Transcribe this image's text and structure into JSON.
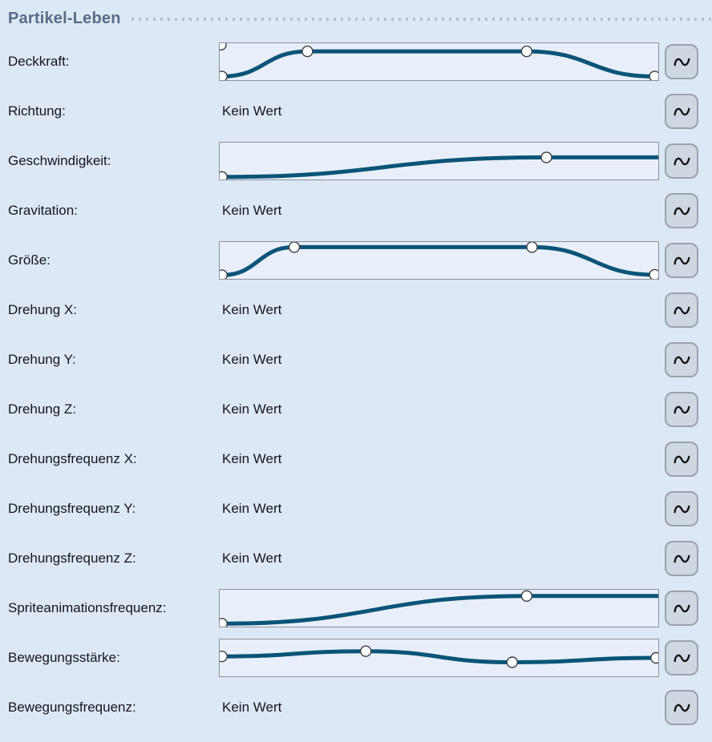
{
  "header": {
    "title": "Partikel-Leben"
  },
  "colors": {
    "background": "#dce8f5",
    "curve": "#0a5478",
    "accent_header": "#5a6b88",
    "widget_background": "#e8effa",
    "widget_border": "#8a929b",
    "button_background": "#cfd8e2",
    "marker_fill": "#ffffff"
  },
  "no_value_text": "Kein Wert",
  "button": {
    "icon": "sine-wave-icon"
  },
  "rows": [
    {
      "label": "Deckkraft:",
      "curve": {
        "points": [
          {
            "x": 0.005,
            "y": 0.9,
            "m": 1
          },
          {
            "x": 0.2,
            "y": 0.22,
            "m": 1
          },
          {
            "x": 0.7,
            "y": 0.22,
            "m": 1
          },
          {
            "x": 0.992,
            "y": 0.9,
            "m": 1
          }
        ],
        "extra_markers": [
          {
            "x": 0.003,
            "y": 0.04
          }
        ]
      }
    },
    {
      "label": "Richtung:",
      "value": "Kein Wert"
    },
    {
      "label": "Geschwindigkeit:",
      "curve": {
        "points": [
          {
            "x": 0.005,
            "y": 0.93,
            "m": 1
          },
          {
            "x": 0.745,
            "y": 0.4,
            "m": 1
          },
          {
            "x": 1.0,
            "y": 0.4,
            "m": 0
          }
        ]
      }
    },
    {
      "label": "Gravitation:",
      "value": "Kein Wert"
    },
    {
      "label": "Größe:",
      "curve": {
        "points": [
          {
            "x": 0.005,
            "y": 0.9,
            "m": 1
          },
          {
            "x": 0.17,
            "y": 0.14,
            "m": 1
          },
          {
            "x": 0.712,
            "y": 0.14,
            "m": 1
          },
          {
            "x": 0.992,
            "y": 0.89,
            "m": 1
          }
        ]
      }
    },
    {
      "label": "Drehung X:",
      "value": "Kein Wert"
    },
    {
      "label": "Drehung Y:",
      "value": "Kein Wert"
    },
    {
      "label": "Drehung Z:",
      "value": "Kein Wert"
    },
    {
      "label": "Drehungsfrequenz X:",
      "value": "Kein Wert"
    },
    {
      "label": "Drehungsfrequenz Y:",
      "value": "Kein Wert"
    },
    {
      "label": "Drehungsfrequenz Z:",
      "value": "Kein Wert"
    },
    {
      "label": "Spriteanimationsfrequenz:",
      "curve": {
        "points": [
          {
            "x": 0.005,
            "y": 0.92,
            "m": 1
          },
          {
            "x": 0.7,
            "y": 0.17,
            "m": 1
          },
          {
            "x": 1.0,
            "y": 0.17,
            "m": 0
          }
        ]
      }
    },
    {
      "label": "Bewegungsstärke:",
      "curve": {
        "points": [
          {
            "x": 0.005,
            "y": 0.46,
            "m": 1
          },
          {
            "x": 0.333,
            "y": 0.32,
            "m": 1
          },
          {
            "x": 0.667,
            "y": 0.62,
            "m": 1
          },
          {
            "x": 0.995,
            "y": 0.5,
            "m": 1
          }
        ]
      }
    },
    {
      "label": "Bewegungsfrequenz:",
      "value": "Kein Wert"
    }
  ]
}
